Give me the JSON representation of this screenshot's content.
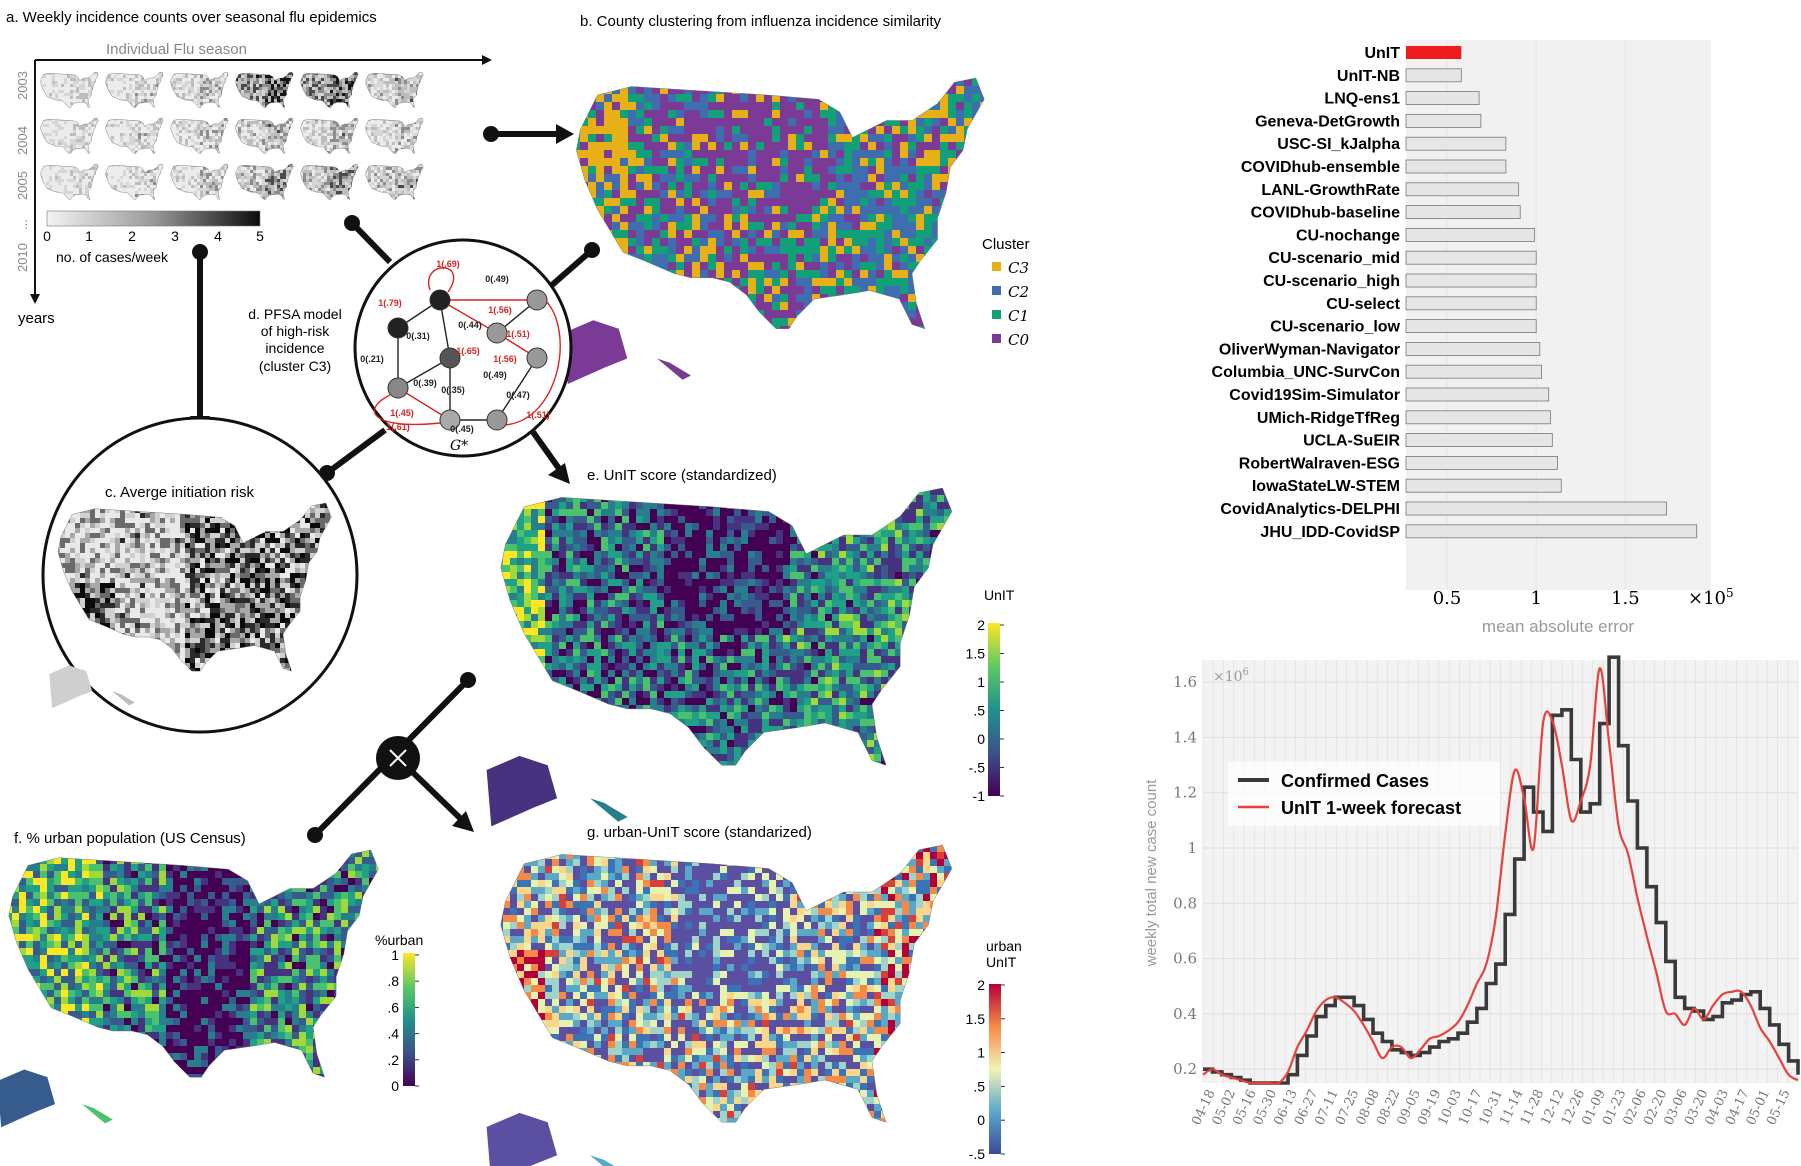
{
  "panels": {
    "a": {
      "title": "a. Weekly incidence counts over seasonal flu epidemics",
      "axis_label": "Individual Flu season",
      "years": [
        "2003",
        "2004",
        "2005",
        "...",
        "2010"
      ],
      "y_axis_label": "years",
      "colorbar_ticks": [
        "0",
        "1",
        "2",
        "3",
        "4",
        "5"
      ],
      "colorbar_label": "no. of cases/week"
    },
    "b": {
      "title": "b. County clustering from influenza incidence similarity",
      "legend_title": "Cluster",
      "legend": [
        {
          "label": "C3",
          "color": "#e7b017"
        },
        {
          "label": "C2",
          "color": "#3e6eb0"
        },
        {
          "label": "C1",
          "color": "#12a078"
        },
        {
          "label": "C0",
          "color": "#7a3a96"
        }
      ]
    },
    "c": {
      "title": "c. Averge initiation risk"
    },
    "d": {
      "caption_lines": [
        "d. PFSA model",
        "of high-risk",
        "incidence",
        "(cluster C3)"
      ],
      "graph_label": "G*",
      "edge_labels": [
        "1(.69)",
        "0(.49)",
        "1(.79)",
        "1(.56)",
        "0(.44)",
        "0(.31)",
        "1(.65)",
        "1(.51)",
        "0(.21)",
        "0(.39)",
        "1(.56)",
        "0(.49)",
        "0(.35)",
        "0(.47)",
        "1(.45)",
        "1(.61)",
        "0(.45)",
        "1(.51)"
      ]
    },
    "e": {
      "title": "e. UnIT score (standardized)",
      "colorbar_label": "UnIT",
      "colorbar_ticks": [
        "2",
        "1.5",
        "1",
        ".5",
        "0",
        "-.5",
        "-1"
      ]
    },
    "f": {
      "title": "f. % urban population (US Census)",
      "colorbar_label": "%urban",
      "colorbar_ticks": [
        "1",
        ".8",
        ".6",
        ".4",
        ".2",
        "0"
      ]
    },
    "g": {
      "title": "g. urban-UnIT score (standarized)",
      "colorbar_label_lines": [
        "urban",
        "UnIT"
      ],
      "colorbar_ticks": [
        "2",
        "1.5",
        "1",
        ".5",
        "0",
        "-.5"
      ]
    }
  },
  "colors": {
    "highlight_bar": "#ee1c1c",
    "bar": "#e6e6e6",
    "forecast_line": "#e8413c",
    "confirmed_line": "#3a3a3a",
    "purple": "#7a3a96",
    "yellow": "#e7b017",
    "blue": "#3e6eb0",
    "green": "#12a078"
  },
  "chart_data": [
    {
      "type": "bar",
      "orientation": "horizontal",
      "categories": [
        "UnIT",
        "UnIT-NB",
        "LNQ-ens1",
        "Geneva-DetGrowth",
        "USC-SI_kJalpha",
        "COVIDhub-ensemble",
        "LANL-GrowthRate",
        "COVIDhub-baseline",
        "CU-nochange",
        "CU-scenario_mid",
        "CU-scenario_high",
        "CU-select",
        "CU-scenario_low",
        "OliverWyman-Navigator",
        "Columbia_UNC-SurvCon",
        "Covid19Sim-Simulator",
        "UMich-RidgeTfReg",
        "UCLA-SuEIR",
        "RobertWalraven-ESG",
        "IowaStateLW-STEM",
        "CovidAnalytics-DELPHI",
        "JHU_IDD-CovidSP"
      ],
      "values": [
        0.58,
        0.58,
        0.68,
        0.69,
        0.83,
        0.83,
        0.9,
        0.91,
        0.99,
        1.0,
        1.0,
        1.0,
        1.0,
        1.02,
        1.03,
        1.07,
        1.08,
        1.09,
        1.12,
        1.14,
        1.73,
        1.9
      ],
      "x_ticks": [
        "0.5",
        "1",
        "1.5"
      ],
      "x_tick_values": [
        0.5,
        1,
        1.5
      ],
      "x_multiplier": "×10",
      "x_multiplier_exp": "5",
      "xlim": [
        0.27,
        1.98
      ],
      "xlabel": "mean absolute error",
      "highlight": "UnIT"
    },
    {
      "type": "line",
      "ylabel": "weekly total new case count",
      "y_multiplier": "×10",
      "y_multiplier_exp": "6",
      "ylim": [
        0.15,
        1.68
      ],
      "y_ticks": [
        "0.2",
        "0.4",
        "0.6",
        "0.8",
        "1",
        "1.2",
        "1.4",
        "1.6"
      ],
      "y_tick_values": [
        0.2,
        0.4,
        0.6,
        0.8,
        1.0,
        1.2,
        1.4,
        1.6
      ],
      "x_ticks": [
        "04-18",
        "05-02",
        "05-16",
        "05-30",
        "06-13",
        "06-27",
        "07-11",
        "07-25",
        "08-08",
        "08-22",
        "09-05",
        "09-19",
        "10-03",
        "10-17",
        "10-31",
        "11-14",
        "11-28",
        "12-12",
        "12-26",
        "01-09",
        "01-23",
        "02-06",
        "02-20",
        "03-06",
        "03-20",
        "04-03",
        "04-17",
        "05-01",
        "05-15"
      ],
      "legend": [
        "Confirmed Cases",
        "UnIT 1-week forecast"
      ],
      "series": [
        {
          "name": "Confirmed Cases",
          "style": "step",
          "values": [
            0.2,
            0.19,
            0.18,
            0.17,
            0.16,
            0.15,
            0.15,
            0.15,
            0.15,
            0.18,
            0.25,
            0.32,
            0.39,
            0.43,
            0.46,
            0.46,
            0.43,
            0.38,
            0.33,
            0.3,
            0.27,
            0.26,
            0.25,
            0.26,
            0.28,
            0.3,
            0.31,
            0.33,
            0.37,
            0.42,
            0.51,
            0.58,
            0.76,
            0.96,
            1.22,
            1.13,
            1.06,
            1.48,
            1.5,
            1.32,
            1.13,
            1.16,
            1.45,
            1.69,
            1.37,
            1.17,
            1.0,
            0.86,
            0.73,
            0.59,
            0.46,
            0.42,
            0.41,
            0.38,
            0.39,
            0.44,
            0.45,
            0.47,
            0.48,
            0.42,
            0.36,
            0.29,
            0.23,
            0.18
          ]
        },
        {
          "name": "UnIT 1-week forecast",
          "style": "smooth",
          "values": [
            0.18,
            0.2,
            0.18,
            0.17,
            0.16,
            0.15,
            0.15,
            0.15,
            0.15,
            0.19,
            0.28,
            0.34,
            0.41,
            0.45,
            0.46,
            0.44,
            0.41,
            0.36,
            0.3,
            0.24,
            0.28,
            0.28,
            0.24,
            0.27,
            0.31,
            0.32,
            0.34,
            0.37,
            0.43,
            0.51,
            0.58,
            0.75,
            1.05,
            1.28,
            1.18,
            1.0,
            1.45,
            1.46,
            1.3,
            1.1,
            1.17,
            1.3,
            1.65,
            1.38,
            1.08,
            0.98,
            0.82,
            0.68,
            0.55,
            0.41,
            0.4,
            0.36,
            0.42,
            0.38,
            0.43,
            0.47,
            0.48,
            0.48,
            0.43,
            0.35,
            0.3,
            0.24,
            0.18,
            0.16
          ]
        }
      ]
    }
  ]
}
